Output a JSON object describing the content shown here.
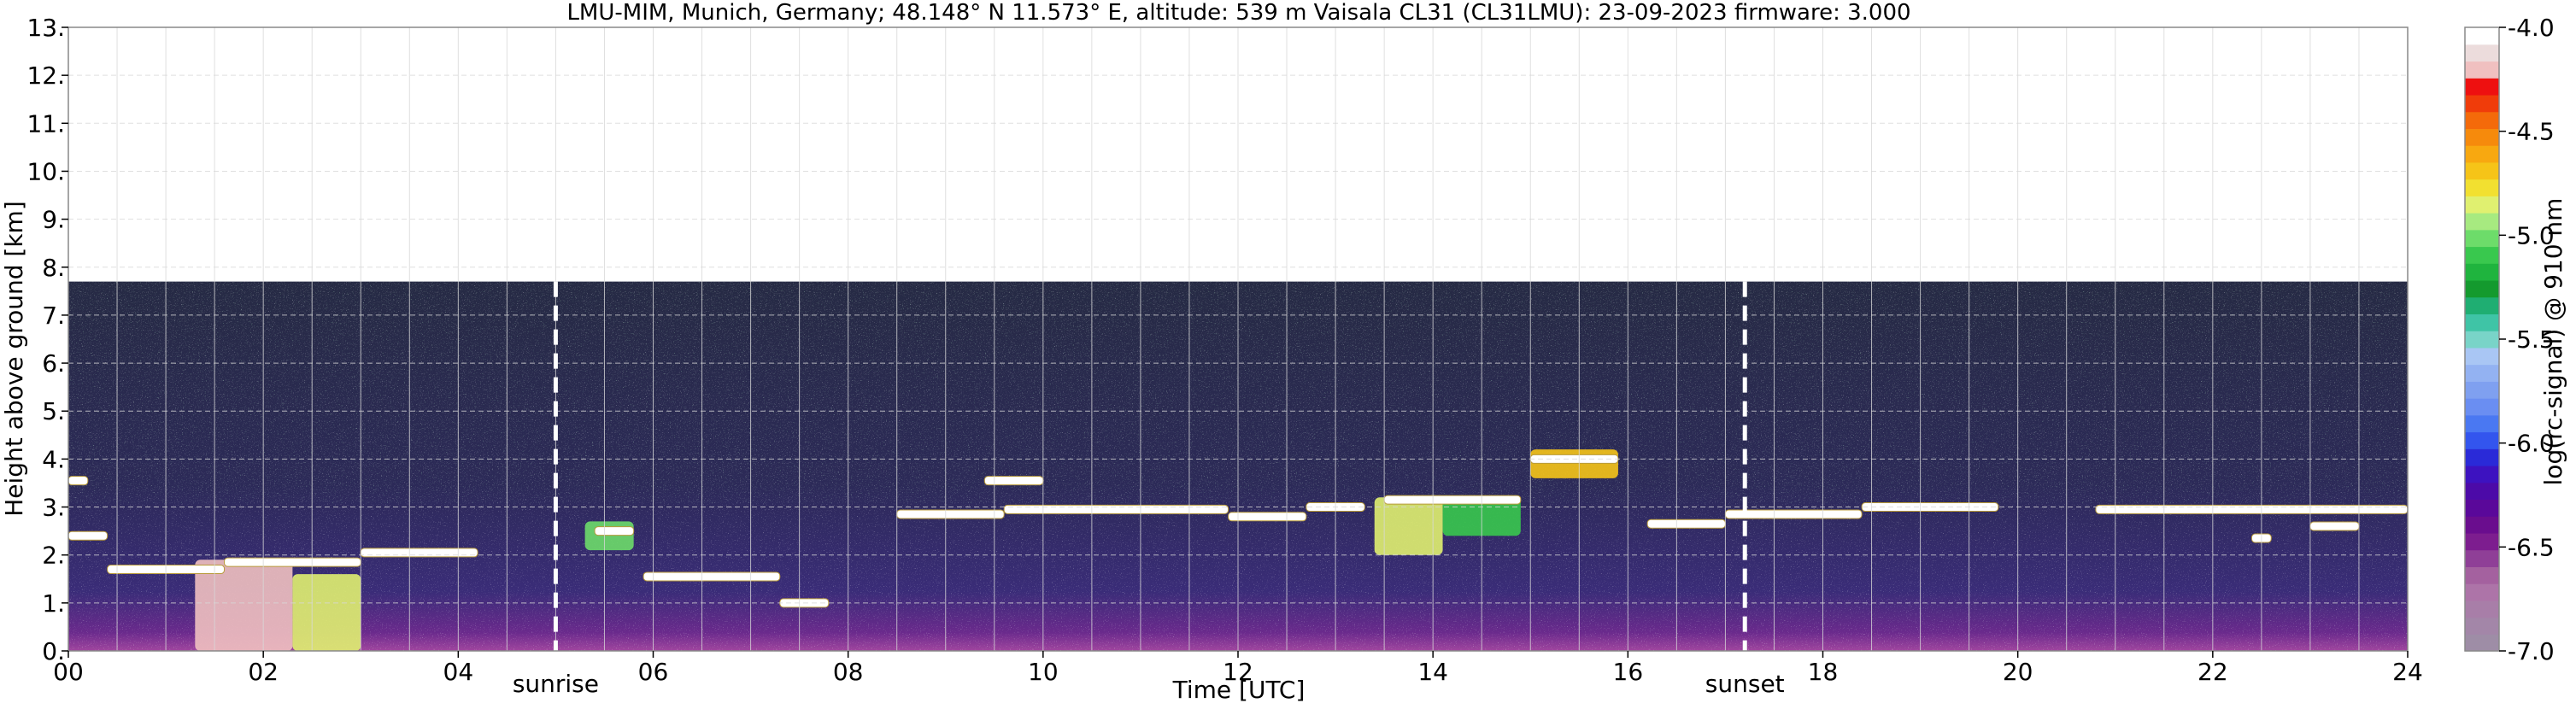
{
  "title": "LMU-MIM, Munich, Germany; 48.148° N 11.573° E, altitude: 539 m    Vaisala CL31 (CL31LMU): 23-09-2023    firmware: 3.000",
  "chart_data": {
    "type": "heatmap",
    "xlabel": "Time [UTC]",
    "ylabel": "Height above ground [km]",
    "xlim": [
      0,
      24
    ],
    "ylim": [
      0,
      13
    ],
    "x_ticks": [
      "00",
      "02",
      "04",
      "06",
      "08",
      "10",
      "12",
      "14",
      "16",
      "18",
      "20",
      "22",
      "24"
    ],
    "y_ticks": [
      "0.",
      "1.",
      "2.",
      "3.",
      "4.",
      "5.",
      "6.",
      "7.",
      "8.",
      "9.",
      "10.",
      "11.",
      "12.",
      "13."
    ],
    "grid": true,
    "data_top_km": 7.7,
    "events": [
      {
        "label": "sunrise",
        "time_h": 5.0
      },
      {
        "label": "sunset",
        "time_h": 17.2
      }
    ],
    "colorbar": {
      "label": "log(rc-signal) @ 910 nm",
      "range": [
        -7.0,
        -4.0
      ],
      "ticks": [
        "-4.0",
        "-4.5",
        "-5.0",
        "-5.5",
        "-6.0",
        "-6.5",
        "-7.0"
      ],
      "colors": [
        "#9e8da6",
        "#a386a8",
        "#a87ea8",
        "#ad74a8",
        "#a4619f",
        "#8f3f97",
        "#7d1d8f",
        "#6a0d8e",
        "#5a089a",
        "#4c0aa8",
        "#3d12c0",
        "#2a2ad8",
        "#3355ee",
        "#4a78f2",
        "#6a8ef2",
        "#7fa0f0",
        "#93b2f2",
        "#a9c6f4",
        "#79d4c8",
        "#3fc4a6",
        "#1fae72",
        "#149a2e",
        "#1fb43e",
        "#39c84e",
        "#6ddc6a",
        "#a7ea80",
        "#e0f070",
        "#f2e030",
        "#f6c418",
        "#f8a810",
        "#f68a0c",
        "#f46a0a",
        "#f03c0a",
        "#ee1010",
        "#f0c0c0",
        "#ecdcdc",
        "#ffffff"
      ]
    },
    "cloud_layers": [
      {
        "t0": 0.0,
        "t1": 0.2,
        "h": 3.55
      },
      {
        "t0": 0.0,
        "t1": 0.4,
        "h": 2.4
      },
      {
        "t0": 0.4,
        "t1": 1.6,
        "h": 1.7
      },
      {
        "t0": 1.6,
        "t1": 3.0,
        "h": 1.85
      },
      {
        "t0": 3.0,
        "t1": 4.2,
        "h": 2.05
      },
      {
        "t0": 5.4,
        "t1": 5.8,
        "h": 2.5
      },
      {
        "t0": 5.9,
        "t1": 7.3,
        "h": 1.55
      },
      {
        "t0": 7.3,
        "t1": 7.8,
        "h": 1.0
      },
      {
        "t0": 8.5,
        "t1": 9.6,
        "h": 2.85
      },
      {
        "t0": 9.4,
        "t1": 10.0,
        "h": 3.55
      },
      {
        "t0": 9.6,
        "t1": 11.9,
        "h": 2.95
      },
      {
        "t0": 11.9,
        "t1": 12.7,
        "h": 2.8
      },
      {
        "t0": 12.7,
        "t1": 13.3,
        "h": 3.0
      },
      {
        "t0": 13.5,
        "t1": 14.9,
        "h": 3.15
      },
      {
        "t0": 15.0,
        "t1": 15.9,
        "h": 4.0
      },
      {
        "t0": 16.2,
        "t1": 17.0,
        "h": 2.65
      },
      {
        "t0": 17.0,
        "t1": 18.4,
        "h": 2.85
      },
      {
        "t0": 18.4,
        "t1": 19.8,
        "h": 3.0
      },
      {
        "t0": 20.8,
        "t1": 24.0,
        "h": 2.95
      },
      {
        "t0": 22.4,
        "t1": 22.6,
        "h": 2.35
      },
      {
        "t0": 23.0,
        "t1": 23.5,
        "h": 2.6
      }
    ],
    "signal_patches": [
      {
        "t0": 1.3,
        "t1": 2.3,
        "h0": 0.0,
        "h1": 1.9,
        "level": -4.2
      },
      {
        "t0": 2.3,
        "t1": 3.0,
        "h0": 0.0,
        "h1": 1.6,
        "level": -4.8
      },
      {
        "t0": 13.4,
        "t1": 14.1,
        "h0": 2.0,
        "h1": 3.2,
        "level": -4.8
      },
      {
        "t0": 14.1,
        "t1": 14.9,
        "h0": 2.4,
        "h1": 3.2,
        "level": -5.1
      },
      {
        "t0": 15.0,
        "t1": 15.9,
        "h0": 3.6,
        "h1": 4.2,
        "level": -4.7
      },
      {
        "t0": 5.3,
        "t1": 5.8,
        "h0": 2.1,
        "h1": 2.7,
        "level": -5.0
      }
    ]
  }
}
